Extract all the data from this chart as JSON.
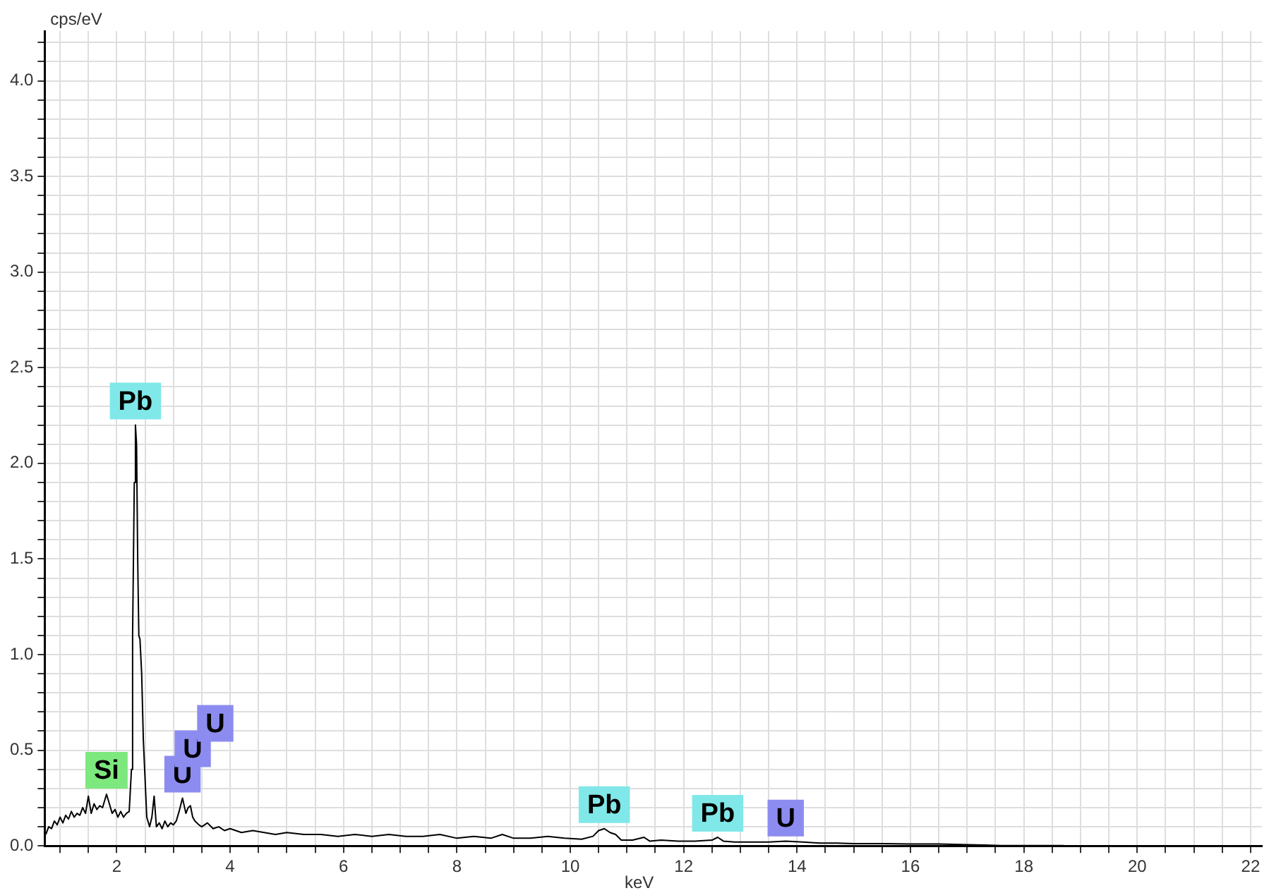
{
  "chart_data": {
    "type": "line",
    "xlabel": "keV",
    "ylabel": "cps/eV",
    "xlim": [
      0.73,
      22.2
    ],
    "ylim": [
      0,
      4.26
    ],
    "xticks": [
      {
        "value": 1,
        "label": null
      },
      {
        "value": 1.5,
        "label": null
      },
      2,
      {
        "value": 2.5,
        "label": null
      },
      {
        "value": 3,
        "label": null
      },
      {
        "value": 3.5,
        "label": null
      },
      4,
      {
        "value": 4.5,
        "label": null
      },
      {
        "value": 5,
        "label": null
      },
      {
        "value": 5.5,
        "label": null
      },
      6,
      {
        "value": 6.5,
        "label": null
      },
      {
        "value": 7,
        "label": null
      },
      {
        "value": 7.5,
        "label": null
      },
      8,
      {
        "value": 8.5,
        "label": null
      },
      {
        "value": 9,
        "label": null
      },
      {
        "value": 9.5,
        "label": null
      },
      10,
      {
        "value": 10.5,
        "label": null
      },
      {
        "value": 11,
        "label": null
      },
      {
        "value": 11.5,
        "label": null
      },
      12,
      {
        "value": 12.5,
        "label": null
      },
      {
        "value": 13,
        "label": null
      },
      {
        "value": 13.5,
        "label": null
      },
      14,
      {
        "value": 14.5,
        "label": null
      },
      {
        "value": 15,
        "label": null
      },
      {
        "value": 15.5,
        "label": null
      },
      16,
      {
        "value": 16.5,
        "label": null
      },
      {
        "value": 17,
        "label": null
      },
      {
        "value": 17.5,
        "label": null
      },
      18,
      {
        "value": 18.5,
        "label": null
      },
      {
        "value": 19,
        "label": null
      },
      {
        "value": 19.5,
        "label": null
      },
      20,
      {
        "value": 20.5,
        "label": null
      },
      {
        "value": 21,
        "label": null
      },
      {
        "value": 21.5,
        "label": null
      },
      22
    ],
    "yticks": [
      {
        "value": 0,
        "label": "0.0"
      },
      {
        "value": 0.1,
        "label": null
      },
      {
        "value": 0.2,
        "label": null
      },
      {
        "value": 0.3,
        "label": null
      },
      {
        "value": 0.4,
        "label": null
      },
      {
        "value": 0.5,
        "label": "0.5"
      },
      {
        "value": 0.6,
        "label": null
      },
      {
        "value": 0.7,
        "label": null
      },
      {
        "value": 0.8,
        "label": null
      },
      {
        "value": 0.9,
        "label": null
      },
      {
        "value": 1,
        "label": "1.0"
      },
      {
        "value": 1.1,
        "label": null
      },
      {
        "value": 1.2,
        "label": null
      },
      {
        "value": 1.3,
        "label": null
      },
      {
        "value": 1.4,
        "label": null
      },
      {
        "value": 1.5,
        "label": "1.5"
      },
      {
        "value": 1.6,
        "label": null
      },
      {
        "value": 1.7,
        "label": null
      },
      {
        "value": 1.8,
        "label": null
      },
      {
        "value": 1.9,
        "label": null
      },
      {
        "value": 2,
        "label": "2.0"
      },
      {
        "value": 2.1,
        "label": null
      },
      {
        "value": 2.2,
        "label": null
      },
      {
        "value": 2.3,
        "label": null
      },
      {
        "value": 2.4,
        "label": null
      },
      {
        "value": 2.5,
        "label": "2.5"
      },
      {
        "value": 2.6,
        "label": null
      },
      {
        "value": 2.7,
        "label": null
      },
      {
        "value": 2.8,
        "label": null
      },
      {
        "value": 2.9,
        "label": null
      },
      {
        "value": 3,
        "label": "3.0"
      },
      {
        "value": 3.1,
        "label": null
      },
      {
        "value": 3.2,
        "label": null
      },
      {
        "value": 3.3,
        "label": null
      },
      {
        "value": 3.4,
        "label": null
      },
      {
        "value": 3.5,
        "label": "3.5"
      },
      {
        "value": 3.6,
        "label": null
      },
      {
        "value": 3.7,
        "label": null
      },
      {
        "value": 3.8,
        "label": null
      },
      {
        "value": 3.9,
        "label": null
      },
      {
        "value": 4,
        "label": "4.0"
      },
      {
        "value": 4.1,
        "label": null
      },
      {
        "value": 4.2,
        "label": null
      }
    ],
    "grid": true,
    "legend": false,
    "marker": "none",
    "line_style": "solid",
    "series": [
      {
        "color": "#000000",
        "x": [
          0.75,
          0.8,
          0.85,
          0.9,
          0.95,
          1.0,
          1.05,
          1.1,
          1.15,
          1.2,
          1.25,
          1.3,
          1.35,
          1.4,
          1.45,
          1.5,
          1.55,
          1.6,
          1.65,
          1.7,
          1.75,
          1.82,
          1.87,
          1.92,
          1.97,
          2.02,
          2.07,
          2.12,
          2.17,
          2.22,
          2.26,
          2.28,
          2.31,
          2.33,
          2.35,
          2.37,
          2.39,
          2.41,
          2.44,
          2.47,
          2.5,
          2.53,
          2.58,
          2.62,
          2.66,
          2.7,
          2.75,
          2.8,
          2.85,
          2.9,
          2.95,
          3.0,
          3.05,
          3.1,
          3.16,
          3.22,
          3.26,
          3.3,
          3.34,
          3.38,
          3.45,
          3.5,
          3.6,
          3.7,
          3.8,
          3.9,
          4.0,
          4.2,
          4.4,
          4.6,
          4.8,
          5.0,
          5.3,
          5.6,
          5.9,
          6.2,
          6.5,
          6.8,
          7.1,
          7.4,
          7.7,
          8.0,
          8.3,
          8.6,
          8.8,
          9.0,
          9.3,
          9.6,
          9.9,
          10.2,
          10.4,
          10.5,
          10.6,
          10.7,
          10.8,
          10.9,
          11.1,
          11.3,
          11.4,
          11.6,
          11.9,
          12.2,
          12.5,
          12.6,
          12.7,
          12.9,
          13.2,
          13.5,
          13.8,
          14.1,
          14.4,
          14.7,
          15.0,
          15.5,
          16.0,
          16.5,
          17.0,
          17.3,
          17.6,
          18.0,
          18.4,
          18.7
        ],
        "values": [
          0.06,
          0.1,
          0.09,
          0.13,
          0.11,
          0.15,
          0.12,
          0.16,
          0.14,
          0.18,
          0.15,
          0.17,
          0.16,
          0.2,
          0.17,
          0.26,
          0.17,
          0.22,
          0.19,
          0.21,
          0.2,
          0.27,
          0.22,
          0.17,
          0.19,
          0.15,
          0.18,
          0.15,
          0.17,
          0.18,
          0.4,
          1.1,
          1.9,
          2.2,
          2.1,
          1.5,
          1.1,
          1.08,
          0.9,
          0.55,
          0.35,
          0.15,
          0.1,
          0.15,
          0.26,
          0.1,
          0.12,
          0.09,
          0.13,
          0.1,
          0.12,
          0.11,
          0.13,
          0.18,
          0.25,
          0.17,
          0.2,
          0.21,
          0.15,
          0.13,
          0.11,
          0.1,
          0.12,
          0.09,
          0.1,
          0.08,
          0.09,
          0.07,
          0.08,
          0.07,
          0.06,
          0.07,
          0.06,
          0.06,
          0.05,
          0.06,
          0.05,
          0.06,
          0.05,
          0.05,
          0.06,
          0.04,
          0.05,
          0.04,
          0.06,
          0.04,
          0.04,
          0.05,
          0.04,
          0.035,
          0.05,
          0.08,
          0.09,
          0.07,
          0.06,
          0.03,
          0.03,
          0.045,
          0.025,
          0.03,
          0.025,
          0.025,
          0.03,
          0.045,
          0.025,
          0.02,
          0.02,
          0.02,
          0.025,
          0.02,
          0.015,
          0.015,
          0.012,
          0.012,
          0.01,
          0.01,
          0.006,
          0.004,
          0.002,
          0.002,
          0.002,
          0.002
        ]
      }
    ],
    "annotations": [
      {
        "text": "Si",
        "x": 1.82,
        "y": 0.27
      },
      {
        "text": "Pb",
        "x": 2.33,
        "y": 2.2
      },
      {
        "text": "U",
        "x": 3.16,
        "y": 0.25
      },
      {
        "text": "U",
        "x": 3.34,
        "y": 0.15
      },
      "U",
      {
        "text": "Pb",
        "x": 10.6,
        "y": 0.09
      },
      {
        "text": "Pb",
        "x": 12.6,
        "y": 0.045
      },
      {
        "text": "U",
        "x": 13.8,
        "y": 0.02
      }
    ]
  }
}
